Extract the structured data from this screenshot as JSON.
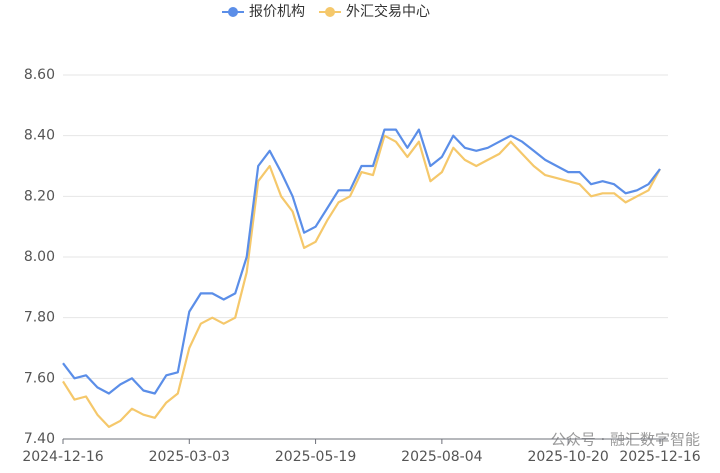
{
  "chart_data": {
    "type": "line",
    "categories": [
      "2024-12-16",
      null,
      null,
      null,
      null,
      null,
      null,
      null,
      null,
      null,
      null,
      "2025-03-03",
      null,
      null,
      null,
      null,
      null,
      null,
      null,
      null,
      null,
      null,
      "2025-05-19",
      null,
      null,
      null,
      null,
      null,
      null,
      null,
      null,
      null,
      null,
      "2025-08-04",
      null,
      null,
      null,
      null,
      null,
      null,
      null,
      null,
      null,
      null,
      "2025-10-20",
      null,
      null,
      null,
      null,
      null,
      null,
      null,
      "2025-12-16"
    ],
    "series": [
      {
        "name": "报价机构",
        "color": "#5b8ee8",
        "values": [
          7.65,
          7.6,
          7.61,
          7.57,
          7.55,
          7.58,
          7.6,
          7.56,
          7.55,
          7.61,
          7.62,
          7.82,
          7.88,
          7.88,
          7.86,
          7.88,
          8.0,
          8.3,
          8.35,
          8.28,
          8.2,
          8.08,
          8.1,
          8.16,
          8.22,
          8.22,
          8.3,
          8.3,
          8.42,
          8.42,
          8.36,
          8.42,
          8.3,
          8.33,
          8.4,
          8.36,
          8.35,
          8.36,
          8.38,
          8.4,
          8.38,
          8.35,
          8.32,
          8.3,
          8.28,
          8.28,
          8.24,
          8.25,
          8.24,
          8.21,
          8.22,
          8.24,
          8.29
        ]
      },
      {
        "name": "外汇交易中心",
        "color": "#f5c86b",
        "values": [
          7.59,
          7.53,
          7.54,
          7.48,
          7.44,
          7.46,
          7.5,
          7.48,
          7.47,
          7.52,
          7.55,
          7.7,
          7.78,
          7.8,
          7.78,
          7.8,
          7.95,
          8.25,
          8.3,
          8.2,
          8.15,
          8.03,
          8.05,
          8.12,
          8.18,
          8.2,
          8.28,
          8.27,
          8.4,
          8.38,
          8.33,
          8.38,
          8.25,
          8.28,
          8.36,
          8.32,
          8.3,
          8.32,
          8.34,
          8.38,
          8.34,
          8.3,
          8.27,
          8.26,
          8.25,
          8.24,
          8.2,
          8.21,
          8.21,
          8.18,
          8.2,
          8.22,
          8.29
        ]
      }
    ],
    "ylim": [
      7.4,
      8.6
    ],
    "yticks": [
      {
        "value": 7.4,
        "label": "7.40"
      },
      {
        "value": 7.6,
        "label": "7.60"
      },
      {
        "value": 7.8,
        "label": "7.80"
      },
      {
        "value": 8.0,
        "label": "8.00"
      },
      {
        "value": 8.2,
        "label": "8.20"
      },
      {
        "value": 8.4,
        "label": "8.40"
      },
      {
        "value": 8.6,
        "label": "8.60"
      }
    ],
    "grid": true,
    "legend": "top",
    "watermark": "公众号 · 融汇数字智能"
  }
}
